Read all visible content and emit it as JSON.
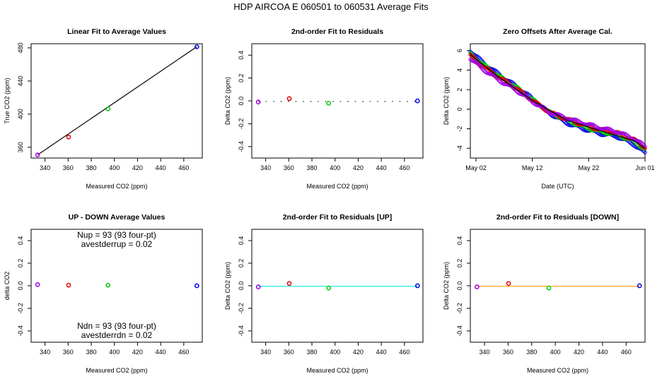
{
  "figure": {
    "title": "HDP    AIRCOA E    060501 to 060531    Average Fits"
  },
  "colors": {
    "gas1": "#a000e6",
    "gas2": "#e60000",
    "gas3": "#00cc00",
    "gas4": "#0000e6",
    "fit_line": "#000000",
    "up_line": "#00e6e6",
    "down_line": "#ff9900"
  },
  "chart_data": [
    {
      "id": "linear",
      "type": "scatter",
      "title": "Linear Fit to Average Values",
      "xlabel": "Measured CO2 (ppm)",
      "ylabel": "True CO2 (ppm)",
      "xlim": [
        328,
        476
      ],
      "ylim": [
        347,
        485
      ],
      "xticks": [
        "340",
        "360",
        "380",
        "400",
        "420",
        "440",
        "460"
      ],
      "xtick_values": [
        340,
        360,
        380,
        400,
        420,
        440,
        460
      ],
      "yticks": [
        "360",
        "400",
        "440",
        "480"
      ],
      "ytick_values": [
        360,
        400,
        440,
        480
      ],
      "points": [
        {
          "x": 333.6,
          "y": 350.8,
          "color": "gas1"
        },
        {
          "x": 360.4,
          "y": 372.3,
          "color": "gas2"
        },
        {
          "x": 394.5,
          "y": 406.3,
          "color": "gas3"
        },
        {
          "x": 471.3,
          "y": 481.4,
          "color": "gas4"
        }
      ],
      "lines": [
        {
          "x": [
            333.6,
            471.3
          ],
          "y": [
            350.8,
            481.4
          ],
          "color": "fit_line"
        }
      ]
    },
    {
      "id": "residuals",
      "type": "scatter",
      "title": "2nd-order Fit to Residuals",
      "xlabel": "Measured CO2 (ppm)",
      "ylabel": "Delta CO2 (ppm)",
      "xlim": [
        328,
        476
      ],
      "ylim": [
        -0.5,
        0.5
      ],
      "xticks": [
        "340",
        "360",
        "380",
        "400",
        "420",
        "440",
        "460"
      ],
      "xtick_values": [
        340,
        360,
        380,
        400,
        420,
        440,
        460
      ],
      "yticks": [
        "-0.4",
        "-0.2",
        "0.0",
        "0.2",
        "0.4"
      ],
      "ytick_values": [
        -0.4,
        -0.2,
        0.0,
        0.2,
        0.4
      ],
      "points": [
        {
          "x": 333.6,
          "y": -0.01,
          "color": "gas1"
        },
        {
          "x": 360.4,
          "y": 0.02,
          "color": "gas2"
        },
        {
          "x": 394.5,
          "y": -0.02,
          "color": "gas3"
        },
        {
          "x": 471.3,
          "y": 0.0,
          "color": "gas4"
        }
      ],
      "lines": [
        {
          "x": [
            333.6,
            471.3
          ],
          "y": [
            -0.005,
            -0.005
          ],
          "color": "fit_line",
          "dotted": true
        }
      ]
    },
    {
      "id": "offsets",
      "type": "scatter",
      "title": "Zero Offsets After Average Cal.",
      "xlabel": "Date (UTC)",
      "ylabel": "Delta CO2 (ppm)",
      "xlim": [
        "2006-05-01",
        "2006-06-01"
      ],
      "ylim": [
        -5,
        6.7
      ],
      "xticks": [
        "May 02",
        "May 12",
        "May 22",
        "Jun 01"
      ],
      "xtick_values": [
        "2006-05-02",
        "2006-05-12",
        "2006-05-22",
        "2006-06-01"
      ],
      "yticks": [
        "-4",
        "-2",
        "0",
        "2",
        "4",
        "6"
      ],
      "ytick_values": [
        -4,
        -2,
        0,
        2,
        4,
        6
      ],
      "series": [
        {
          "color": "gas4",
          "x": [
            "2006-05-01",
            "2006-05-03",
            "2006-05-06",
            "2006-05-09",
            "2006-05-12",
            "2006-05-15",
            "2006-05-18",
            "2006-05-21",
            "2006-05-24",
            "2006-05-27",
            "2006-05-30",
            "2006-06-01"
          ],
          "y": [
            6.0,
            4.9,
            3.6,
            2.4,
            1.1,
            -0.4,
            -1.4,
            -2.0,
            -2.5,
            -2.8,
            -3.6,
            -4.5
          ]
        },
        {
          "color": "gas3",
          "x": [
            "2006-05-01",
            "2006-05-03",
            "2006-05-06",
            "2006-05-09",
            "2006-05-12",
            "2006-05-15",
            "2006-05-18",
            "2006-05-21",
            "2006-05-24",
            "2006-05-27",
            "2006-05-30",
            "2006-06-01"
          ],
          "y": [
            5.7,
            4.7,
            3.4,
            2.3,
            1.0,
            -0.3,
            -1.1,
            -1.8,
            -2.3,
            -2.6,
            -3.3,
            -4.1
          ]
        },
        {
          "color": "gas2",
          "x": [
            "2006-05-01",
            "2006-05-03",
            "2006-05-06",
            "2006-05-09",
            "2006-05-12",
            "2006-05-15",
            "2006-05-18",
            "2006-05-21",
            "2006-05-24",
            "2006-05-27",
            "2006-05-30",
            "2006-06-01"
          ],
          "y": [
            5.5,
            4.5,
            3.3,
            2.2,
            0.9,
            -0.3,
            -1.0,
            -1.6,
            -2.1,
            -2.4,
            -3.1,
            -3.9
          ]
        },
        {
          "color": "gas1",
          "x": [
            "2006-05-01",
            "2006-05-03",
            "2006-05-06",
            "2006-05-09",
            "2006-05-12",
            "2006-05-15",
            "2006-05-18",
            "2006-05-21",
            "2006-05-24",
            "2006-05-27",
            "2006-05-30",
            "2006-06-01"
          ],
          "y": [
            5.2,
            4.2,
            3.0,
            2.0,
            0.8,
            -0.3,
            -0.9,
            -1.4,
            -1.9,
            -2.3,
            -3.0,
            -3.8
          ]
        }
      ],
      "lines": [
        {
          "x": [
            "2006-05-01",
            "2006-05-06",
            "2006-05-12",
            "2006-05-18",
            "2006-05-24",
            "2006-05-30",
            "2006-06-01"
          ],
          "y": [
            5.6,
            3.3,
            0.9,
            -1.1,
            -2.2,
            -3.2,
            -4.0
          ],
          "color": "fit_line"
        }
      ]
    },
    {
      "id": "updown",
      "type": "scatter",
      "title": "UP - DOWN Average Values",
      "xlabel": "Measured CO2 (ppm)",
      "ylabel": "delta CO2",
      "xlim": [
        328,
        476
      ],
      "ylim": [
        -0.5,
        0.5
      ],
      "xticks": [
        "340",
        "360",
        "380",
        "400",
        "420",
        "440",
        "460"
      ],
      "xtick_values": [
        340,
        360,
        380,
        400,
        420,
        440,
        460
      ],
      "yticks": [
        "-0.4",
        "-0.2",
        "0.0",
        "0.2",
        "0.4"
      ],
      "ytick_values": [
        -0.4,
        -0.2,
        0.0,
        0.2,
        0.4
      ],
      "annotations": [
        "Nup = 93 (93 four-pt)",
        "avestderrup =  0.02",
        "Ndn = 93 (93 four-pt)",
        "avestderrdn =  0.02"
      ],
      "points": [
        {
          "x": 333.6,
          "y": 0.01,
          "color": "gas1"
        },
        {
          "x": 360.4,
          "y": 0.005,
          "color": "gas2"
        },
        {
          "x": 394.5,
          "y": 0.005,
          "color": "gas3"
        },
        {
          "x": 471.3,
          "y": 0.0,
          "color": "gas4"
        }
      ],
      "lines": []
    },
    {
      "id": "residuals_up",
      "type": "scatter",
      "title": "2nd-order Fit to Residuals [UP]",
      "xlabel": "Measured CO2 (ppm)",
      "ylabel": "Delta CO2 (ppm)",
      "xlim": [
        328,
        476
      ],
      "ylim": [
        -0.5,
        0.5
      ],
      "xticks": [
        "340",
        "360",
        "380",
        "400",
        "420",
        "440",
        "460"
      ],
      "xtick_values": [
        340,
        360,
        380,
        400,
        420,
        440,
        460
      ],
      "yticks": [
        "-0.4",
        "-0.2",
        "0.0",
        "0.2",
        "0.4"
      ],
      "ytick_values": [
        -0.4,
        -0.2,
        0.0,
        0.2,
        0.4
      ],
      "points": [
        {
          "x": 333.6,
          "y": -0.01,
          "color": "gas1"
        },
        {
          "x": 360.4,
          "y": 0.02,
          "color": "gas2"
        },
        {
          "x": 394.5,
          "y": -0.02,
          "color": "gas3"
        },
        {
          "x": 471.3,
          "y": 0.0,
          "color": "gas4"
        }
      ],
      "lines": [
        {
          "x": [
            333.6,
            471.3
          ],
          "y": [
            -0.005,
            -0.005
          ],
          "color": "up_line"
        }
      ]
    },
    {
      "id": "residuals_down",
      "type": "scatter",
      "title": "2nd-order Fit to Residuals [DOWN]",
      "xlabel": "Measured CO2 (ppm)",
      "ylabel": "Delta CO2 (ppm)",
      "xlim": [
        328,
        476
      ],
      "ylim": [
        -0.5,
        0.5
      ],
      "xticks": [
        "340",
        "360",
        "380",
        "400",
        "420",
        "440",
        "460"
      ],
      "xtick_values": [
        340,
        360,
        380,
        400,
        420,
        440,
        460
      ],
      "yticks": [
        "-0.4",
        "-0.2",
        "0.0",
        "0.2",
        "0.4"
      ],
      "ytick_values": [
        -0.4,
        -0.2,
        0.0,
        0.2,
        0.4
      ],
      "points": [
        {
          "x": 333.6,
          "y": -0.01,
          "color": "gas1"
        },
        {
          "x": 360.4,
          "y": 0.02,
          "color": "gas2"
        },
        {
          "x": 394.5,
          "y": -0.02,
          "color": "gas3"
        },
        {
          "x": 471.3,
          "y": 0.0,
          "color": "gas4"
        }
      ],
      "lines": [
        {
          "x": [
            333.6,
            471.3
          ],
          "y": [
            -0.005,
            -0.005
          ],
          "color": "down_line"
        }
      ]
    }
  ]
}
